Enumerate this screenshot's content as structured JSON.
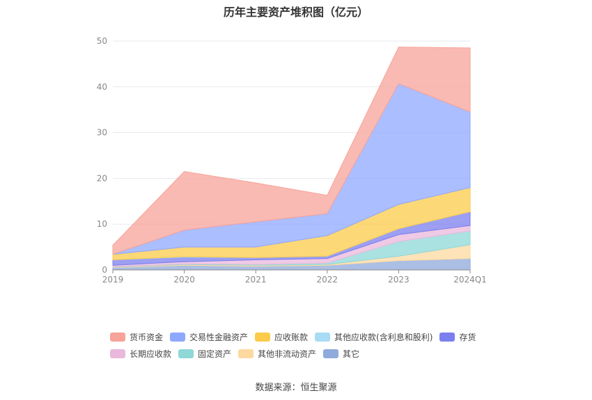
{
  "title": "历年主要资产堆积图（亿元）",
  "source": "数据来源：恒生聚源",
  "chart_data": {
    "type": "area",
    "stacked": true,
    "categories": [
      "2019",
      "2020",
      "2021",
      "2022",
      "2023",
      "2024Q1"
    ],
    "ylim": [
      0,
      50
    ],
    "yticks": [
      0,
      10,
      20,
      30,
      40,
      50
    ],
    "grid": true,
    "legend_position": "bottom",
    "series": [
      {
        "name": "其它",
        "color": "#8FAADC",
        "values": [
          0.5,
          1.0,
          0.8,
          1.0,
          2.0,
          2.5
        ]
      },
      {
        "name": "其他非流动资产",
        "color": "#FDD9A0",
        "values": [
          0.1,
          0.2,
          0.2,
          0.2,
          1.0,
          3.0
        ]
      },
      {
        "name": "固定资产",
        "color": "#8ED8D8",
        "values": [
          0.1,
          0.1,
          0.2,
          0.3,
          3.2,
          3.0
        ]
      },
      {
        "name": "长期应收款",
        "color": "#EAB8DC",
        "values": [
          0.3,
          0.5,
          1.0,
          1.0,
          1.5,
          1.2
        ]
      },
      {
        "name": "存货",
        "color": "#7B7FEE",
        "values": [
          1.2,
          1.0,
          0.5,
          0.5,
          1.3,
          3.0
        ]
      },
      {
        "name": "其他应收款(含利息和股利)",
        "color": "#A8DCF5",
        "values": [
          0.0,
          0.1,
          0.0,
          0.0,
          0.0,
          0.0
        ]
      },
      {
        "name": "应收账款",
        "color": "#FCCB4A",
        "values": [
          1.2,
          2.1,
          2.3,
          4.5,
          5.3,
          5.3
        ]
      },
      {
        "name": "交易性金融资产",
        "color": "#8FA8FF",
        "values": [
          0.0,
          3.7,
          5.5,
          4.8,
          26.4,
          16.5
        ]
      },
      {
        "name": "货币资金",
        "color": "#F7A399",
        "values": [
          2.0,
          12.8,
          8.5,
          4.0,
          8.0,
          14.0
        ]
      }
    ]
  },
  "legend_rows": [
    [
      "货币资金",
      "交易性金融资产",
      "应收账款",
      "其他应收款(含利息和股利)",
      "存货"
    ],
    [
      "长期应收款",
      "固定资产",
      "其他非流动资产",
      "其它"
    ]
  ]
}
